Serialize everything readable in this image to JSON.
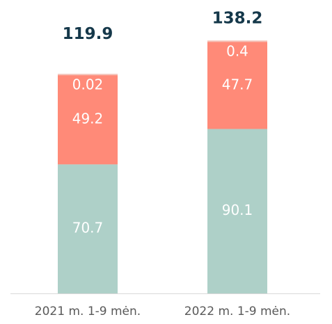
{
  "chart_data": {
    "type": "stacked_bar",
    "categories": [
      "2021 m. 1-9 mėn.",
      "2022 m. 1-9 mėn."
    ],
    "series": [
      {
        "color": "#aed0c8",
        "values": [
          70.7,
          90.1
        ]
      },
      {
        "color": "#ff8a78",
        "values": [
          49.2,
          47.7
        ]
      },
      {
        "color": "#ff8a78",
        "values": [
          0.02,
          0.4
        ]
      }
    ],
    "totals": [
      119.9,
      138.2
    ],
    "ylim": [
      0,
      160
    ]
  }
}
